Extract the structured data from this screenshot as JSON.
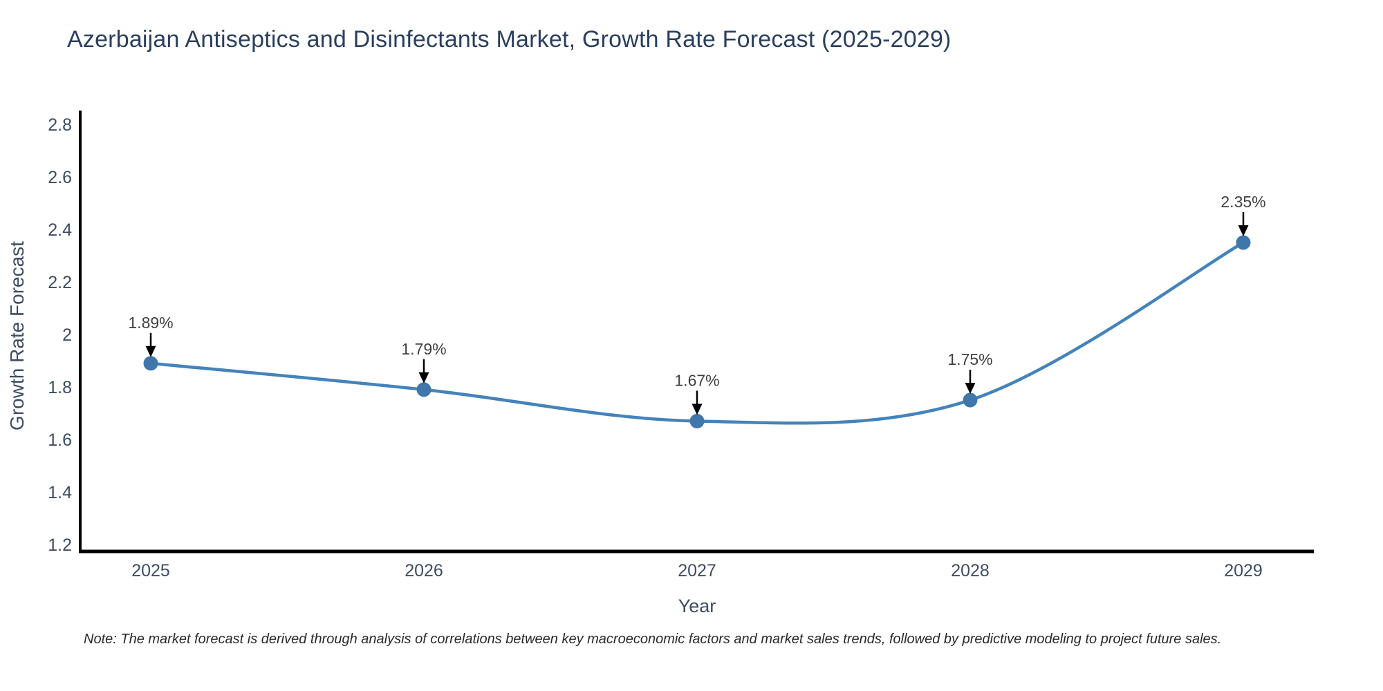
{
  "chart_data": {
    "type": "line",
    "title": "Azerbaijan Antiseptics and Disinfectants Market, Growth Rate Forecast (2025-2029)",
    "xlabel": "Year",
    "ylabel": "Growth Rate Forecast",
    "categories": [
      "2025",
      "2026",
      "2027",
      "2028",
      "2029"
    ],
    "values": [
      1.89,
      1.79,
      1.67,
      1.75,
      2.35
    ],
    "point_labels": [
      "1.89%",
      "1.79%",
      "1.67%",
      "1.75%",
      "2.35%"
    ],
    "ytick_labels": [
      "1.2",
      "1.4",
      "1.6",
      "1.8",
      "2",
      "2.2",
      "2.4",
      "2.6",
      "2.8"
    ],
    "ytick_values": [
      1.2,
      1.4,
      1.6,
      1.8,
      2.0,
      2.2,
      2.4,
      2.6,
      2.8
    ],
    "ylim": [
      1.168,
      2.853
    ],
    "line_shape": "spline",
    "grid": false,
    "legend_position": "none",
    "note": "Note: The market forecast is derived through analysis of correlations between key macroeconomic factors and market sales trends, followed by predictive modeling to project future sales.",
    "colors": {
      "line": "#4483bb",
      "marker": "#3f77ab",
      "axis": "#000000",
      "title": "#2a3f5f",
      "tick": "#3d4c63",
      "axis_title": "#3d4c63",
      "annotation_text": "#3f3f3f",
      "arrow": "#000000",
      "note_text": "#2a2a2a",
      "background": "#ffffff"
    }
  }
}
